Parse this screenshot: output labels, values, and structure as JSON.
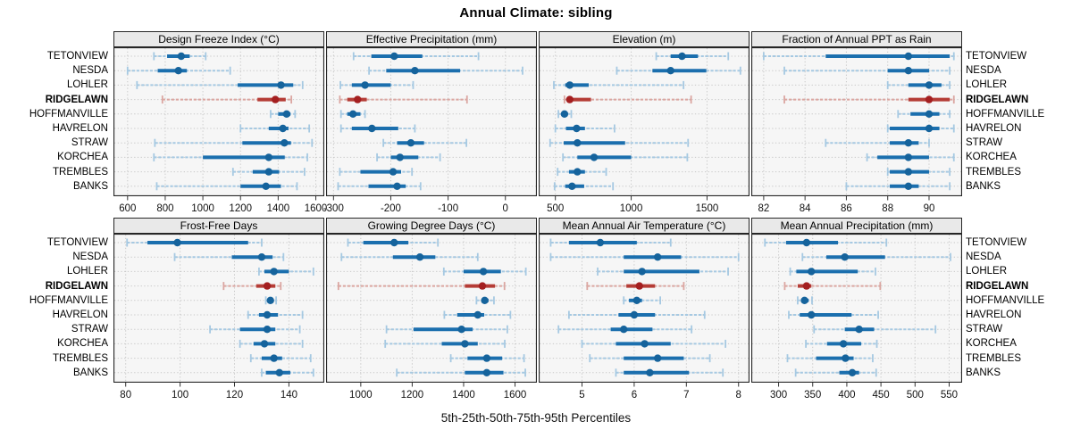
{
  "title": "Annual Climate: sibling",
  "caption": "5th-25th-50th-75th-95th Percentiles",
  "colors": {
    "blue": "#1b6fae",
    "blue_light": "#a6c9e2",
    "blue_dot": "#15639c",
    "red": "#b53c36",
    "red_light": "#dba6a1",
    "red_dot": "#a41f20",
    "strip_bg": "#e9e9e9",
    "panel_bg": "#f6f6f6",
    "grid": "#c8c8c8",
    "border": "#262626",
    "axis_text": "#111111"
  },
  "chart_data": {
    "type": "dotplot-intervals",
    "percentiles": [
      5,
      25,
      50,
      75,
      95
    ],
    "sites": [
      "TETONVIEW",
      "NESDA",
      "LOHLER",
      "RIDGELAWN",
      "HOFFMANVILLE",
      "HAVRELON",
      "STRAW",
      "KORCHEA",
      "TREMBLES",
      "BANKS"
    ],
    "highlight_site": "RIDGELAWN",
    "legend_position": "none",
    "grid": "dotted",
    "panels": [
      {
        "title": "Design Freeze Index (°C)",
        "row": 0,
        "col": 0,
        "xlim": [
          525,
          1645
        ],
        "ticks": [
          600,
          800,
          1000,
          1200,
          1400,
          1600
        ],
        "values": [
          [
            740,
            810,
            885,
            930,
            1015
          ],
          [
            600,
            760,
            870,
            915,
            1145
          ],
          [
            650,
            1185,
            1415,
            1480,
            1530
          ],
          [
            785,
            1290,
            1385,
            1440,
            1470
          ],
          [
            1360,
            1400,
            1445,
            1465,
            1490
          ],
          [
            1200,
            1350,
            1425,
            1455,
            1565
          ],
          [
            745,
            1210,
            1433,
            1468,
            1580
          ],
          [
            740,
            1000,
            1350,
            1435,
            1555
          ],
          [
            1160,
            1265,
            1350,
            1405,
            1540
          ],
          [
            755,
            1200,
            1335,
            1415,
            1500
          ]
        ]
      },
      {
        "title": "Effective Precipitation (mm)",
        "row": 0,
        "col": 1,
        "xlim": [
          -313,
          55
        ],
        "ticks": [
          -300,
          -200,
          -100,
          0
        ],
        "values": [
          [
            -265,
            -234,
            -194,
            -145,
            -47
          ],
          [
            -238,
            -208,
            -158,
            -79,
            30
          ],
          [
            -288,
            -268,
            -245,
            -200,
            -161
          ],
          [
            -289,
            -276,
            -258,
            -242,
            -67
          ],
          [
            -287,
            -276,
            -266,
            -253,
            -245
          ],
          [
            -287,
            -268,
            -233,
            -187,
            -158
          ],
          [
            -213,
            -189,
            -165,
            -142,
            -68
          ],
          [
            -224,
            -200,
            -184,
            -152,
            -114
          ],
          [
            -289,
            -253,
            -196,
            -182,
            -163
          ],
          [
            -292,
            -239,
            -189,
            -174,
            -148
          ]
        ]
      },
      {
        "title": "Elevation (m)",
        "row": 0,
        "col": 2,
        "xlim": [
          390,
          1780
        ],
        "ticks": [
          500,
          1000,
          1500
        ],
        "values": [
          [
            1165,
            1260,
            1335,
            1440,
            1640
          ],
          [
            905,
            1140,
            1260,
            1495,
            1720
          ],
          [
            490,
            565,
            595,
            720,
            1345
          ],
          [
            560,
            575,
            595,
            735,
            1395
          ],
          [
            520,
            545,
            560,
            575,
            605
          ],
          [
            500,
            570,
            640,
            695,
            890
          ],
          [
            465,
            555,
            645,
            960,
            1375
          ],
          [
            550,
            645,
            755,
            1000,
            1370
          ],
          [
            515,
            590,
            645,
            695,
            835
          ],
          [
            495,
            565,
            610,
            690,
            880
          ]
        ]
      },
      {
        "title": "Fraction of Annual PPT as Rain",
        "row": 0,
        "col": 3,
        "xlim": [
          81.4,
          91.6
        ],
        "ticks": [
          82,
          84,
          86,
          88,
          90
        ],
        "values": [
          [
            82,
            85,
            89,
            91,
            91.2
          ],
          [
            83,
            88,
            89,
            90,
            91
          ],
          [
            88,
            89,
            90,
            90.6,
            91
          ],
          [
            83,
            89,
            90,
            91,
            91.2
          ],
          [
            88.5,
            89.1,
            90,
            90.5,
            91
          ],
          [
            88,
            88.1,
            90,
            90.5,
            91.2
          ],
          [
            85,
            88.1,
            89,
            89.5,
            90
          ],
          [
            87,
            87.5,
            89,
            90,
            91.2
          ],
          [
            88,
            88.1,
            89,
            90,
            91
          ],
          [
            86,
            88.1,
            89,
            89.5,
            91
          ]
        ]
      },
      {
        "title": "Frost-Free Days",
        "row": 1,
        "col": 0,
        "xlim": [
          75.5,
          153
        ],
        "ticks": [
          80,
          100,
          120,
          140
        ],
        "values": [
          [
            80.5,
            88,
            99,
            125,
            130
          ],
          [
            98,
            119,
            130,
            134,
            138
          ],
          [
            129,
            131,
            134.5,
            140,
            149
          ],
          [
            116,
            128,
            132,
            135,
            137
          ],
          [
            131.5,
            132.5,
            133.2,
            134.2,
            135.3
          ],
          [
            125,
            129,
            132,
            136,
            145
          ],
          [
            111,
            122,
            132,
            135,
            144
          ],
          [
            122,
            127,
            131,
            135,
            145
          ],
          [
            126,
            130,
            134.5,
            137.5,
            148
          ],
          [
            130,
            131.5,
            136.5,
            140.5,
            149
          ]
        ]
      },
      {
        "title": "Growing Degree Days (°C)",
        "row": 1,
        "col": 1,
        "xlim": [
          865,
          1685
        ],
        "ticks": [
          1000,
          1200,
          1400,
          1600
        ],
        "values": [
          [
            950,
            1010,
            1130,
            1185,
            1300
          ],
          [
            925,
            1125,
            1230,
            1290,
            1455
          ],
          [
            1323,
            1400,
            1477,
            1545,
            1642
          ],
          [
            913,
            1405,
            1473,
            1522,
            1559
          ],
          [
            1450,
            1470,
            1482,
            1497,
            1518
          ],
          [
            1325,
            1375,
            1455,
            1480,
            1582
          ],
          [
            1100,
            1205,
            1392,
            1435,
            1570
          ],
          [
            1095,
            1315,
            1405,
            1455,
            1560
          ],
          [
            1350,
            1415,
            1490,
            1550,
            1635
          ],
          [
            1140,
            1405,
            1490,
            1555,
            1640
          ]
        ]
      },
      {
        "title": "Mean Annual Air Temperature (°C)",
        "row": 1,
        "col": 2,
        "xlim": [
          4.17,
          8.21
        ],
        "ticks": [
          5,
          6,
          7,
          8
        ],
        "values": [
          [
            4.4,
            4.75,
            5.35,
            6.05,
            6.7
          ],
          [
            4.4,
            5.8,
            6.45,
            6.9,
            8.0
          ],
          [
            5.3,
            5.8,
            6.15,
            7.25,
            7.8
          ],
          [
            5.1,
            5.85,
            6.1,
            6.4,
            6.95
          ],
          [
            5.8,
            5.9,
            6.05,
            6.15,
            6.5
          ],
          [
            4.75,
            5.7,
            6.0,
            6.4,
            7.35
          ],
          [
            4.55,
            5.55,
            5.8,
            6.35,
            7.1
          ],
          [
            5.0,
            5.65,
            6.2,
            6.7,
            7.75
          ],
          [
            5.15,
            5.8,
            6.45,
            6.95,
            7.45
          ],
          [
            5.65,
            5.8,
            6.3,
            7.05,
            7.7
          ]
        ]
      },
      {
        "title": "Mean Annual Precipitation (mm)",
        "row": 1,
        "col": 3,
        "xlim": [
          260,
          569
        ],
        "ticks": [
          300,
          350,
          400,
          450,
          500,
          550
        ],
        "values": [
          [
            280,
            311,
            341,
            387,
            458
          ],
          [
            335,
            370,
            397,
            456,
            552
          ],
          [
            317,
            326,
            348,
            416,
            442
          ],
          [
            309,
            328,
            341,
            348,
            449
          ],
          [
            328,
            333,
            338,
            344,
            349
          ],
          [
            315,
            331,
            348,
            407,
            446
          ],
          [
            352,
            397,
            418,
            440,
            530
          ],
          [
            340,
            371,
            395,
            421,
            444
          ],
          [
            313,
            355,
            398,
            410,
            438
          ],
          [
            325,
            389,
            408,
            418,
            443
          ]
        ]
      }
    ]
  }
}
